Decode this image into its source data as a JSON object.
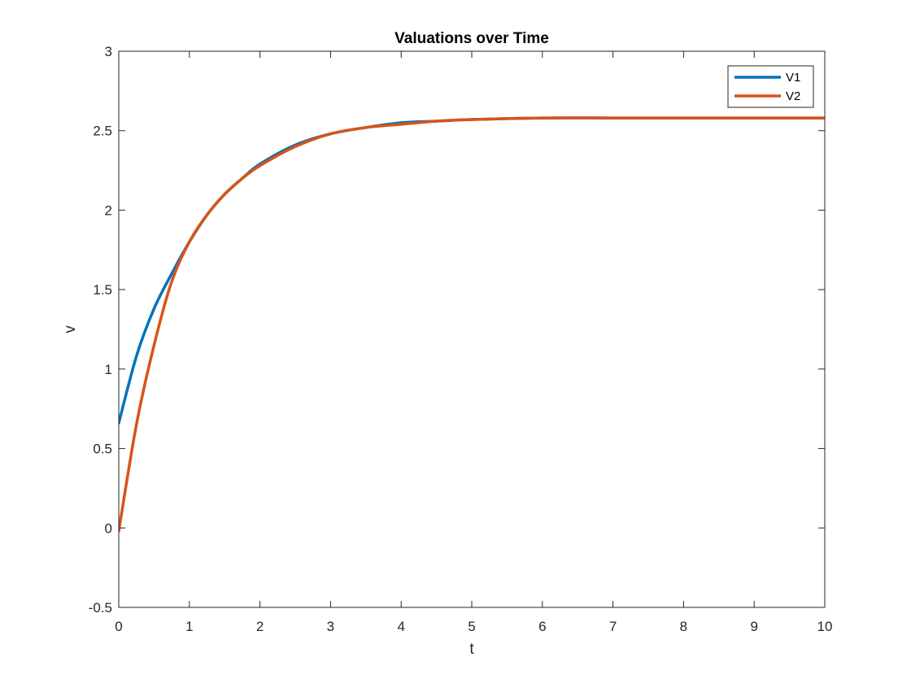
{
  "chart_data": {
    "type": "line",
    "title": "Valuations over Time",
    "xlabel": "t",
    "ylabel": "v",
    "xlim": [
      0,
      10
    ],
    "ylim": [
      -0.5,
      3
    ],
    "xticks": [
      0,
      1,
      2,
      3,
      4,
      5,
      6,
      7,
      8,
      9,
      10
    ],
    "yticks": [
      -0.5,
      0,
      0.5,
      1,
      1.5,
      2,
      2.5,
      3
    ],
    "xtick_labels": [
      "0",
      "1",
      "2",
      "3",
      "4",
      "5",
      "6",
      "7",
      "8",
      "9",
      "10"
    ],
    "ytick_labels": [
      "-0.5",
      "0",
      "0.5",
      "1",
      "1.5",
      "2",
      "2.5",
      "3"
    ],
    "grid": false,
    "legend_position": "top-right",
    "x": [
      0,
      0.25,
      0.5,
      0.75,
      1,
      1.25,
      1.5,
      1.75,
      2,
      2.5,
      3,
      3.5,
      4,
      4.5,
      5,
      6,
      7,
      8,
      9,
      10
    ],
    "series": [
      {
        "name": "V1",
        "color": "#0072BD",
        "values": [
          0.66,
          1.08,
          1.38,
          1.6,
          1.8,
          1.97,
          2.1,
          2.2,
          2.29,
          2.41,
          2.48,
          2.52,
          2.55,
          2.56,
          2.57,
          2.58,
          2.58,
          2.58,
          2.58,
          2.58
        ]
      },
      {
        "name": "V2",
        "color": "#D95319",
        "values": [
          -0.02,
          0.65,
          1.15,
          1.55,
          1.8,
          1.97,
          2.1,
          2.2,
          2.28,
          2.4,
          2.48,
          2.52,
          2.54,
          2.56,
          2.57,
          2.58,
          2.58,
          2.58,
          2.58,
          2.58
        ]
      }
    ]
  }
}
